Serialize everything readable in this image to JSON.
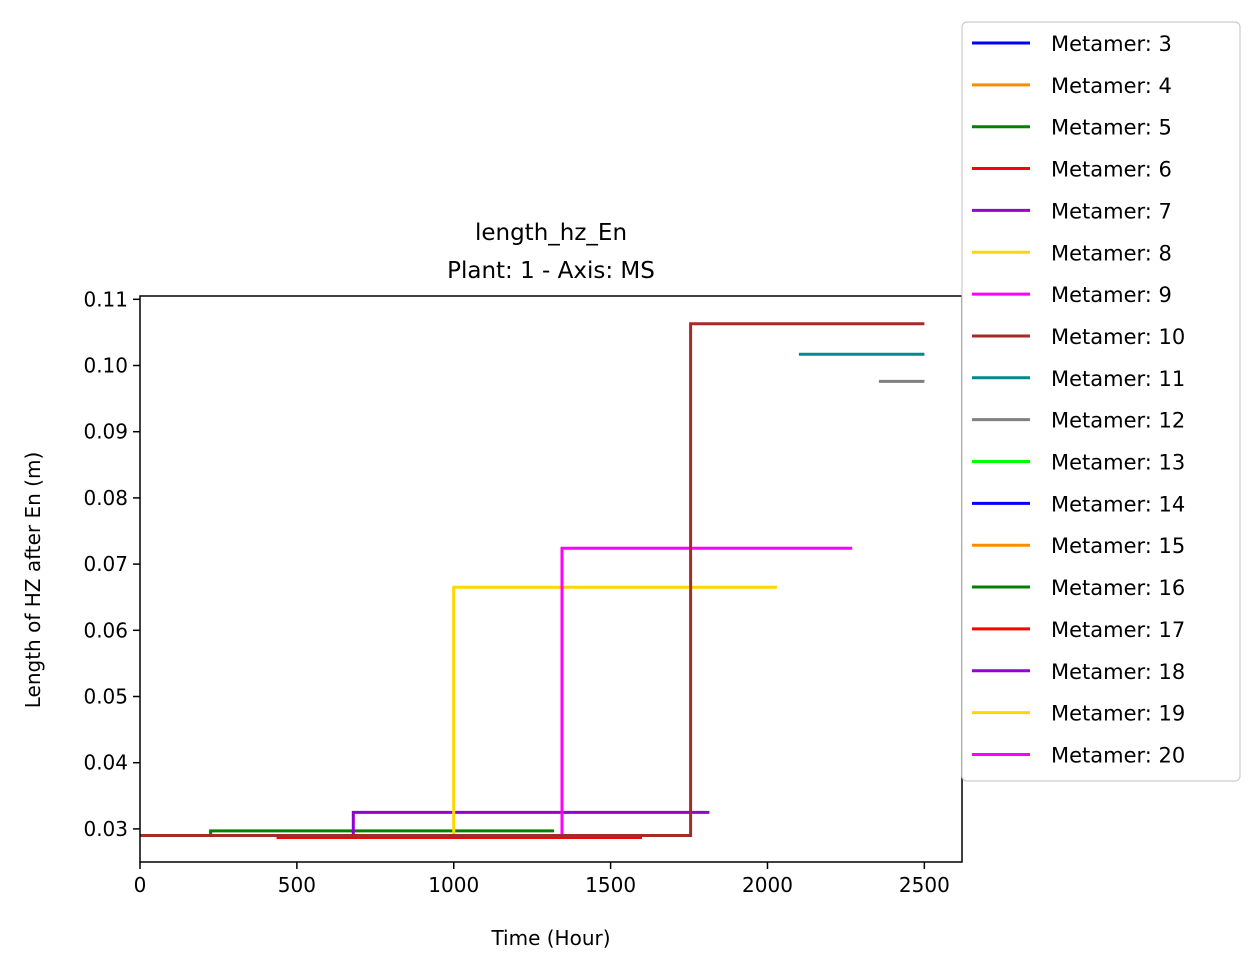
{
  "chart_data": {
    "type": "line",
    "title": "length_hz_En",
    "subtitle": "Plant: 1 - Axis: MS",
    "xlabel": "Time (Hour)",
    "ylabel": "Length of HZ after En (m)",
    "xlim": [
      0,
      2620
    ],
    "ylim": [
      0.025,
      0.1105
    ],
    "xticks": [
      0,
      500,
      1000,
      1500,
      2000,
      2500
    ],
    "xtick_labels": [
      "0",
      "500",
      "1000",
      "1500",
      "2000",
      "2500"
    ],
    "yticks": [
      0.03,
      0.04,
      0.05,
      0.06,
      0.07,
      0.08,
      0.09,
      0.1,
      0.11
    ],
    "ytick_labels": [
      "0.03",
      "0.04",
      "0.05",
      "0.06",
      "0.07",
      "0.08",
      "0.09",
      "0.10",
      "0.11"
    ],
    "grid": false,
    "legend_position": "outside top-right",
    "legend": [
      {
        "label": "Metamer: 3",
        "color": "#0000ff"
      },
      {
        "label": "Metamer: 4",
        "color": "#ff8c00"
      },
      {
        "label": "Metamer: 5",
        "color": "#008000"
      },
      {
        "label": "Metamer: 6",
        "color": "#ff0000"
      },
      {
        "label": "Metamer: 7",
        "color": "#9400d3"
      },
      {
        "label": "Metamer: 8",
        "color": "#ffd700"
      },
      {
        "label": "Metamer: 9",
        "color": "#ff00ff"
      },
      {
        "label": "Metamer: 10",
        "color": "#a52a2a"
      },
      {
        "label": "Metamer: 11",
        "color": "#008b8b"
      },
      {
        "label": "Metamer: 12",
        "color": "#808080"
      },
      {
        "label": "Metamer: 13",
        "color": "#00ff00"
      },
      {
        "label": "Metamer: 14",
        "color": "#0000ff"
      },
      {
        "label": "Metamer: 15",
        "color": "#ff8c00"
      },
      {
        "label": "Metamer: 16",
        "color": "#008000"
      },
      {
        "label": "Metamer: 17",
        "color": "#ff0000"
      },
      {
        "label": "Metamer: 18",
        "color": "#9400d3"
      },
      {
        "label": "Metamer: 19",
        "color": "#ffd700"
      },
      {
        "label": "Metamer: 20",
        "color": "#ff00ff"
      }
    ],
    "series": [
      {
        "name": "Metamer: 4",
        "color": "#ff8c00",
        "x": [
          0,
          1600
        ],
        "y": [
          0.029,
          0.029
        ]
      },
      {
        "name": "Metamer: 5",
        "color": "#008000",
        "x": [
          225,
          225,
          1320
        ],
        "y": [
          0.029,
          0.0297,
          0.0297
        ]
      },
      {
        "name": "Metamer: 6",
        "color": "#ff0000",
        "x": [
          440,
          440,
          1600
        ],
        "y": [
          0.029,
          0.0287,
          0.0287
        ]
      },
      {
        "name": "Metamer: 7",
        "color": "#9400d3",
        "x": [
          680,
          680,
          1815
        ],
        "y": [
          0.029,
          0.0325,
          0.0325
        ]
      },
      {
        "name": "Metamer: 8",
        "color": "#ffd700",
        "x": [
          1000,
          1000,
          2030
        ],
        "y": [
          0.029,
          0.0665,
          0.0665
        ]
      },
      {
        "name": "Metamer: 9",
        "color": "#ff00ff",
        "x": [
          1345,
          1345,
          2270
        ],
        "y": [
          0.029,
          0.0724,
          0.0724
        ]
      },
      {
        "name": "Metamer: 10",
        "color": "#a52a2a",
        "x": [
          0,
          1755,
          1755,
          2500
        ],
        "y": [
          0.029,
          0.029,
          0.1063,
          0.1063
        ]
      },
      {
        "name": "Metamer: 11",
        "color": "#008b8b",
        "x": [
          2100,
          2500
        ],
        "y": [
          0.1017,
          0.1017
        ]
      },
      {
        "name": "Metamer: 12",
        "color": "#808080",
        "x": [
          2355,
          2500
        ],
        "y": [
          0.0976,
          0.0976
        ]
      }
    ]
  }
}
